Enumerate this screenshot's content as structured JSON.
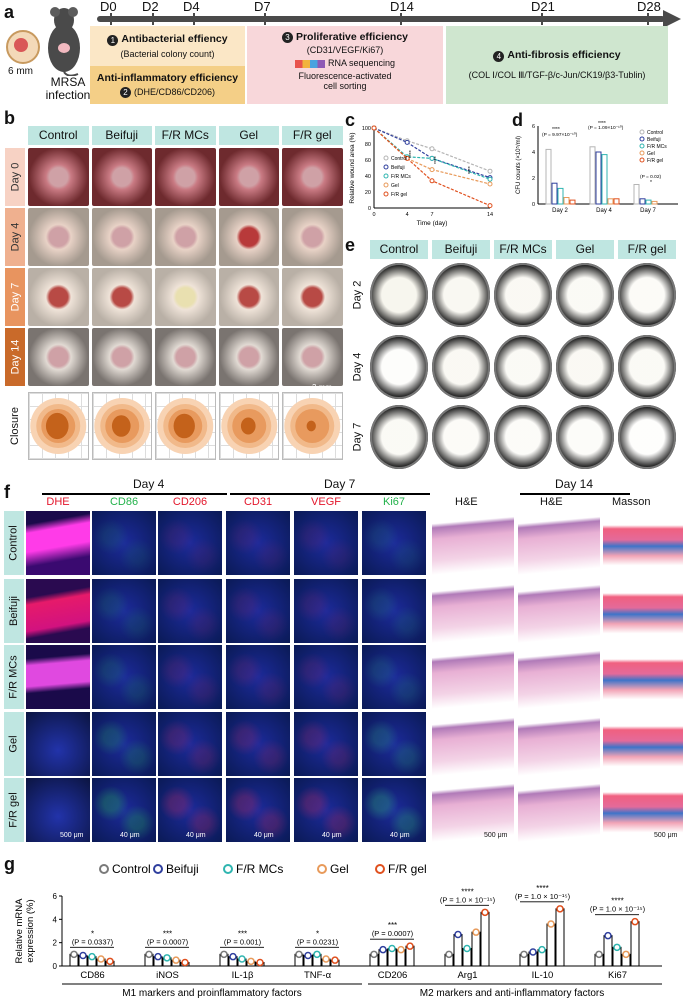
{
  "panel_a": {
    "letter": "a",
    "scale": "6 mm",
    "infection": "MRSA\ninfection",
    "days": [
      "D0",
      "D2",
      "D4",
      "D7",
      "D14",
      "D21",
      "D28"
    ],
    "box1": {
      "num": "1",
      "title": "Antibacterial effiency",
      "sub": "(Bacterial colony count)"
    },
    "box2": {
      "num": "2",
      "title": "Anti-inflammatory efficiency",
      "sub": "(DHE/CD86/CD206)"
    },
    "box3": {
      "num": "3",
      "title": "Proliferative efficiency",
      "sub": "(CD31/VEGF/Ki67)",
      "rna": "RNA sequencing",
      "facs": "Fluorescence-activated\ncell sorting"
    },
    "box4": {
      "num": "4",
      "title": "Anti-fibrosis efficiency",
      "sub": "(COL Ⅰ/COL Ⅲ/TGF-β/c-Jun/CK19/β3-Tublin)"
    },
    "colors": {
      "box12": "#fbe7c6",
      "box2band": "#f4cf87",
      "box3": "#f8d7da",
      "box4": "#cfe6cf"
    }
  },
  "panel_b": {
    "letter": "b",
    "groups": [
      "Control",
      "Beifuji",
      "F/R MCs",
      "Gel",
      "F/R gel"
    ],
    "rows": [
      "Day 0",
      "Day 4",
      "Day 7",
      "Day 14",
      "Closure"
    ],
    "scale": "3 mm",
    "row_colors": [
      "#f7d2c4",
      "#efb08f",
      "#e8945f",
      "#c96a2a",
      "#ffffff"
    ]
  },
  "panel_c": {
    "letter": "c",
    "ylabel": "Relative wound area (%)",
    "xlabel": "Time (day)",
    "legend": [
      "Control",
      "Beifuji",
      "F/R MCs",
      "Gel",
      "F/R gel"
    ],
    "colors": [
      "#b5b5b5",
      "#2f3f9e",
      "#2fb5b0",
      "#e89a5a",
      "#e0501e"
    ],
    "sig1": "****",
    "sig2": "****",
    "sig3": "****"
  },
  "panel_d": {
    "letter": "d",
    "ylabel": "CFU counts (×10⁵/ml)",
    "p1": "(P = 9.97×10⁻¹⁰)",
    "p2": "(P = 1.09×10⁻¹⁰)",
    "p3": "(P = 0.02)",
    "stars1": "****",
    "stars2": "****",
    "star3": "*",
    "legend": [
      "Control",
      "Beifuji",
      "F/R MCs",
      "Gel",
      "F/R gel"
    ]
  },
  "panel_e": {
    "letter": "e",
    "groups": [
      "Control",
      "Beifuji",
      "F/R MCs",
      "Gel",
      "F/R gel"
    ],
    "rows": [
      "Day 2",
      "Day 4",
      "Day 7"
    ]
  },
  "panel_f": {
    "letter": "f",
    "day4": "Day 4",
    "day7": "Day 7",
    "day14": "Day 14",
    "stains": [
      "DHE",
      "CD86",
      "CD206",
      "CD31",
      "VEGF",
      "Ki67"
    ],
    "stain_colors": [
      "#e3162b",
      "#23b24b",
      "#e3162b",
      "#e3162b",
      "#e3162b",
      "#23b24b"
    ],
    "he1": "H&E",
    "he2": "H&E",
    "masson": "Masson",
    "rows": [
      "Control",
      "Beifuji",
      "F/R MCs",
      "Gel",
      "F/R gel"
    ],
    "scale_500": "500 μm",
    "scale_40": "40 μm"
  },
  "panel_g": {
    "letter": "g",
    "ylabel": "Relative mRNA\nexpression (%)",
    "legend": [
      "Control",
      "Beifuji",
      "F/R MCs",
      "Gel",
      "F/R gel"
    ],
    "legend_colors": [
      "#7a7a7a",
      "#2f3f9e",
      "#2fb5b0",
      "#e89a5a",
      "#e0501e"
    ],
    "categories": [
      "CD86",
      "iNOS",
      "IL-1β",
      "TNF-α",
      "CD206",
      "Arg1",
      "IL-10",
      "Ki67"
    ],
    "pvals": [
      "(P = 0.0337)",
      "(P = 0.0007)",
      "(P = 0.001)",
      "(P = 0.0231)",
      "(P = 0.0007)",
      "(P = 1.0 × 10⁻¹⁵)",
      "(P = 1.0 × 10⁻¹⁵)",
      "(P = 1.0 × 10⁻¹⁵)"
    ],
    "stars": [
      "*",
      "***",
      "***",
      "*",
      "***",
      "****",
      "****",
      "****"
    ],
    "m1": "M1 markers and proinflammatory factors",
    "m2": "M2 markers and anti-inflammatory factors",
    "yticks": [
      "0",
      "2",
      "4",
      "6"
    ],
    "chart_data": {
      "type": "bar",
      "categories": [
        "CD86",
        "iNOS",
        "IL-1β",
        "TNF-α",
        "CD206",
        "Arg1",
        "IL-10",
        "Ki67"
      ],
      "series": [
        {
          "name": "Control",
          "values": [
            1.0,
            1.0,
            1.0,
            1.0,
            1.0,
            1.0,
            1.0,
            1.0
          ]
        },
        {
          "name": "Beifuji",
          "values": [
            0.9,
            0.8,
            0.8,
            0.9,
            1.4,
            2.7,
            1.2,
            2.6
          ]
        },
        {
          "name": "F/R MCs",
          "values": [
            0.8,
            0.7,
            0.6,
            1.0,
            1.5,
            1.5,
            1.4,
            1.6
          ]
        },
        {
          "name": "Gel",
          "values": [
            0.6,
            0.5,
            0.4,
            0.6,
            1.4,
            2.9,
            3.6,
            1.0
          ]
        },
        {
          "name": "F/R gel",
          "values": [
            0.4,
            0.3,
            0.3,
            0.5,
            1.7,
            4.6,
            4.9,
            3.8
          ]
        }
      ],
      "ylim": [
        0,
        6
      ]
    }
  }
}
